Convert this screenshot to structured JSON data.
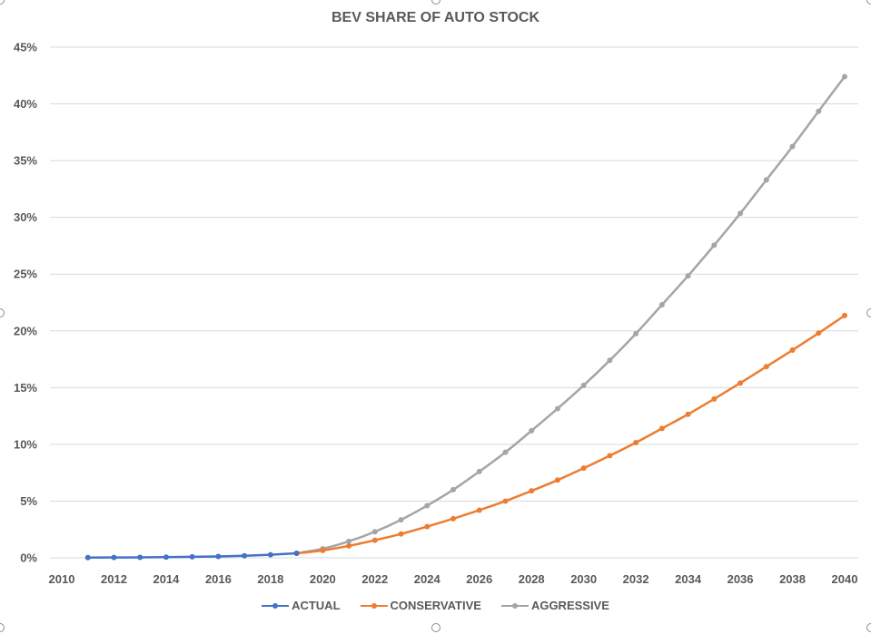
{
  "chart_data": {
    "type": "line",
    "title": "BEV SHARE OF AUTO STOCK",
    "xlabel": "",
    "ylabel": "",
    "xlim": [
      2010,
      2040
    ],
    "ylim": [
      0,
      45
    ],
    "x_ticks": [
      "2010",
      "2012",
      "2014",
      "2016",
      "2018",
      "2020",
      "2022",
      "2024",
      "2026",
      "2028",
      "2030",
      "2032",
      "2034",
      "2036",
      "2038",
      "2040"
    ],
    "y_ticks": [
      "0%",
      "5%",
      "10%",
      "15%",
      "20%",
      "25%",
      "30%",
      "35%",
      "40%",
      "45%"
    ],
    "grid": "horizontal",
    "legend_position": "bottom",
    "series": [
      {
        "name": "ACTUAL",
        "color": "#4472C4",
        "x": [
          2011,
          2012,
          2013,
          2014,
          2015,
          2016,
          2017,
          2018,
          2019
        ],
        "values": [
          0.02,
          0.03,
          0.04,
          0.06,
          0.09,
          0.12,
          0.18,
          0.27,
          0.4
        ]
      },
      {
        "name": "CONSERVATIVE",
        "color": "#ED7D31",
        "x": [
          2019,
          2020,
          2021,
          2022,
          2023,
          2024,
          2025,
          2026,
          2027,
          2028,
          2029,
          2030,
          2031,
          2032,
          2033,
          2034,
          2035,
          2036,
          2037,
          2038,
          2039,
          2040
        ],
        "values": [
          0.4,
          0.65,
          1.05,
          1.55,
          2.1,
          2.75,
          3.45,
          4.2,
          5.0,
          5.9,
          6.85,
          7.9,
          9.0,
          10.15,
          11.4,
          12.65,
          14.0,
          15.4,
          16.85,
          18.3,
          19.8,
          21.35
        ]
      },
      {
        "name": "AGGRESSIVE",
        "color": "#A5A5A5",
        "x": [
          2019,
          2020,
          2021,
          2022,
          2023,
          2024,
          2025,
          2026,
          2027,
          2028,
          2029,
          2030,
          2031,
          2032,
          2033,
          2034,
          2035,
          2036,
          2037,
          2038,
          2039,
          2040
        ],
        "values": [
          0.4,
          0.8,
          1.45,
          2.3,
          3.35,
          4.6,
          6.0,
          7.6,
          9.3,
          11.2,
          13.15,
          15.2,
          17.4,
          19.75,
          22.3,
          24.85,
          27.55,
          30.35,
          33.3,
          36.25,
          39.35,
          42.4
        ]
      }
    ]
  }
}
